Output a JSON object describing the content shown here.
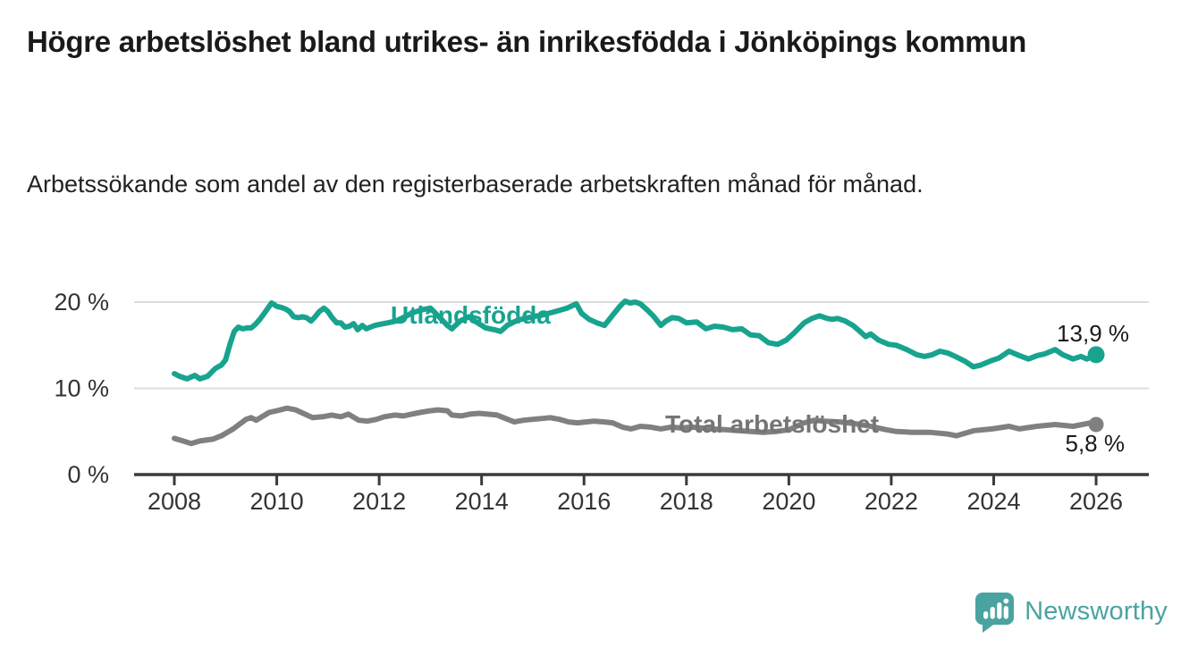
{
  "header": {
    "title": "Högre arbetslöshet bland utrikes- än inrikesfödda i Jönköpings kommun",
    "subtitle": "Arbetssökande som andel av den registerbaserade arbetskraften månad för månad."
  },
  "footer": {
    "brand": "Newsworthy"
  },
  "colors": {
    "teal": "#18a38f",
    "gray": "#808080",
    "gray_label": "#757575",
    "grid": "#dcdcdc",
    "axis": "#3a3a3a",
    "text_dark": "#1a1a1a",
    "logo_teal": "#4aa3a1"
  },
  "chart_data": {
    "type": "line",
    "title": "Högre arbetslöshet bland utrikes- än inrikesfödda i Jönköpings kommun",
    "subtitle": "Arbetssökande som andel av den registerbaserade arbetskraften månad för månad.",
    "grid": "horizontal",
    "legend": "inline-labels",
    "x_axis": {
      "ticks": [
        2008,
        2010,
        2012,
        2014,
        2016,
        2018,
        2020,
        2022,
        2024,
        2026
      ],
      "labels": [
        "2008",
        "2010",
        "2012",
        "2014",
        "2016",
        "2018",
        "2020",
        "2022",
        "2024",
        "2026"
      ],
      "range": [
        2007.2,
        2027.0
      ]
    },
    "y_axis": {
      "ticks": [
        0,
        10,
        20
      ],
      "labels": [
        "0 %",
        "10 %",
        "20 %"
      ],
      "range": [
        0,
        22
      ],
      "unit": "%"
    },
    "series": [
      {
        "name": "Utlandsfödda",
        "color": "#18a38f",
        "end_label": "13,9 %",
        "end_value": 13.9,
        "points": [
          [
            2008.0,
            11.7
          ],
          [
            2008.1,
            11.4
          ],
          [
            2008.25,
            11.1
          ],
          [
            2008.4,
            11.5
          ],
          [
            2008.5,
            11.1
          ],
          [
            2008.65,
            11.4
          ],
          [
            2008.8,
            12.3
          ],
          [
            2008.92,
            12.7
          ],
          [
            2009.0,
            13.3
          ],
          [
            2009.08,
            15.0
          ],
          [
            2009.17,
            16.6
          ],
          [
            2009.25,
            17.1
          ],
          [
            2009.33,
            16.9
          ],
          [
            2009.42,
            17.0
          ],
          [
            2009.5,
            17.0
          ],
          [
            2009.58,
            17.4
          ],
          [
            2009.67,
            18.0
          ],
          [
            2009.78,
            18.9
          ],
          [
            2009.9,
            19.9
          ],
          [
            2010.0,
            19.5
          ],
          [
            2010.08,
            19.4
          ],
          [
            2010.17,
            19.2
          ],
          [
            2010.25,
            18.9
          ],
          [
            2010.33,
            18.3
          ],
          [
            2010.42,
            18.2
          ],
          [
            2010.5,
            18.3
          ],
          [
            2010.58,
            18.2
          ],
          [
            2010.67,
            17.8
          ],
          [
            2010.75,
            18.3
          ],
          [
            2010.83,
            18.9
          ],
          [
            2010.92,
            19.3
          ],
          [
            2011.0,
            18.9
          ],
          [
            2011.08,
            18.2
          ],
          [
            2011.17,
            17.6
          ],
          [
            2011.25,
            17.6
          ],
          [
            2011.33,
            17.1
          ],
          [
            2011.42,
            17.2
          ],
          [
            2011.5,
            17.5
          ],
          [
            2011.58,
            16.8
          ],
          [
            2011.67,
            17.3
          ],
          [
            2011.75,
            16.9
          ],
          [
            2011.83,
            17.1
          ],
          [
            2011.92,
            17.3
          ],
          [
            2012.0,
            17.4
          ],
          [
            2012.17,
            17.6
          ],
          [
            2012.33,
            17.8
          ],
          [
            2012.5,
            18.3
          ],
          [
            2012.67,
            18.8
          ],
          [
            2012.83,
            19.1
          ],
          [
            2013.0,
            19.3
          ],
          [
            2013.17,
            18.3
          ],
          [
            2013.33,
            17.3
          ],
          [
            2013.42,
            16.9
          ],
          [
            2013.58,
            17.8
          ],
          [
            2013.75,
            18.3
          ],
          [
            2013.92,
            17.6
          ],
          [
            2014.08,
            17.0
          ],
          [
            2014.25,
            16.8
          ],
          [
            2014.37,
            16.6
          ],
          [
            2014.5,
            17.3
          ],
          [
            2014.67,
            17.8
          ],
          [
            2014.83,
            18.1
          ],
          [
            2015.0,
            18.3
          ],
          [
            2015.25,
            18.6
          ],
          [
            2015.5,
            19.0
          ],
          [
            2015.67,
            19.3
          ],
          [
            2015.85,
            19.8
          ],
          [
            2015.95,
            18.7
          ],
          [
            2016.1,
            18.0
          ],
          [
            2016.25,
            17.6
          ],
          [
            2016.4,
            17.3
          ],
          [
            2016.55,
            18.4
          ],
          [
            2016.7,
            19.5
          ],
          [
            2016.8,
            20.1
          ],
          [
            2016.9,
            19.9
          ],
          [
            2017.0,
            20.0
          ],
          [
            2017.1,
            19.8
          ],
          [
            2017.25,
            19.0
          ],
          [
            2017.35,
            18.4
          ],
          [
            2017.5,
            17.3
          ],
          [
            2017.6,
            17.8
          ],
          [
            2017.72,
            18.2
          ],
          [
            2017.85,
            18.1
          ],
          [
            2018.0,
            17.6
          ],
          [
            2018.2,
            17.7
          ],
          [
            2018.38,
            16.9
          ],
          [
            2018.55,
            17.2
          ],
          [
            2018.72,
            17.1
          ],
          [
            2018.9,
            16.8
          ],
          [
            2019.08,
            16.9
          ],
          [
            2019.25,
            16.2
          ],
          [
            2019.42,
            16.1
          ],
          [
            2019.6,
            15.3
          ],
          [
            2019.78,
            15.1
          ],
          [
            2019.95,
            15.6
          ],
          [
            2020.1,
            16.4
          ],
          [
            2020.3,
            17.6
          ],
          [
            2020.45,
            18.1
          ],
          [
            2020.6,
            18.4
          ],
          [
            2020.75,
            18.1
          ],
          [
            2020.85,
            18.0
          ],
          [
            2020.95,
            18.1
          ],
          [
            2021.1,
            17.8
          ],
          [
            2021.25,
            17.3
          ],
          [
            2021.35,
            16.8
          ],
          [
            2021.5,
            16.0
          ],
          [
            2021.6,
            16.3
          ],
          [
            2021.75,
            15.6
          ],
          [
            2021.95,
            15.1
          ],
          [
            2022.1,
            15.0
          ],
          [
            2022.3,
            14.5
          ],
          [
            2022.5,
            13.9
          ],
          [
            2022.65,
            13.7
          ],
          [
            2022.8,
            13.9
          ],
          [
            2022.95,
            14.3
          ],
          [
            2023.1,
            14.1
          ],
          [
            2023.25,
            13.7
          ],
          [
            2023.45,
            13.1
          ],
          [
            2023.6,
            12.5
          ],
          [
            2023.75,
            12.7
          ],
          [
            2023.95,
            13.2
          ],
          [
            2024.1,
            13.5
          ],
          [
            2024.3,
            14.3
          ],
          [
            2024.5,
            13.8
          ],
          [
            2024.68,
            13.4
          ],
          [
            2024.85,
            13.8
          ],
          [
            2025.0,
            14.0
          ],
          [
            2025.2,
            14.5
          ],
          [
            2025.35,
            13.9
          ],
          [
            2025.55,
            13.4
          ],
          [
            2025.7,
            13.7
          ],
          [
            2025.82,
            13.4
          ],
          [
            2026.0,
            13.9
          ]
        ]
      },
      {
        "name": "Total arbetslöshet",
        "color": "#808080",
        "end_label": "5,8 %",
        "end_value": 5.8,
        "points": [
          [
            2008.0,
            4.2
          ],
          [
            2008.17,
            3.9
          ],
          [
            2008.33,
            3.6
          ],
          [
            2008.5,
            3.9
          ],
          [
            2008.75,
            4.1
          ],
          [
            2008.92,
            4.5
          ],
          [
            2009.15,
            5.3
          ],
          [
            2009.4,
            6.4
          ],
          [
            2009.5,
            6.6
          ],
          [
            2009.6,
            6.3
          ],
          [
            2009.85,
            7.2
          ],
          [
            2010.0,
            7.4
          ],
          [
            2010.2,
            7.7
          ],
          [
            2010.37,
            7.5
          ],
          [
            2010.55,
            7.0
          ],
          [
            2010.7,
            6.6
          ],
          [
            2010.9,
            6.7
          ],
          [
            2011.07,
            6.9
          ],
          [
            2011.25,
            6.7
          ],
          [
            2011.4,
            7.0
          ],
          [
            2011.6,
            6.3
          ],
          [
            2011.77,
            6.2
          ],
          [
            2011.95,
            6.4
          ],
          [
            2012.1,
            6.7
          ],
          [
            2012.3,
            6.9
          ],
          [
            2012.47,
            6.8
          ],
          [
            2012.63,
            7.0
          ],
          [
            2012.8,
            7.2
          ],
          [
            2013.0,
            7.4
          ],
          [
            2013.15,
            7.5
          ],
          [
            2013.33,
            7.4
          ],
          [
            2013.42,
            6.9
          ],
          [
            2013.6,
            6.8
          ],
          [
            2013.77,
            7.0
          ],
          [
            2013.95,
            7.1
          ],
          [
            2014.12,
            7.0
          ],
          [
            2014.3,
            6.9
          ],
          [
            2014.47,
            6.5
          ],
          [
            2014.64,
            6.1
          ],
          [
            2014.82,
            6.3
          ],
          [
            2015.0,
            6.4
          ],
          [
            2015.17,
            6.5
          ],
          [
            2015.34,
            6.6
          ],
          [
            2015.52,
            6.4
          ],
          [
            2015.7,
            6.1
          ],
          [
            2015.87,
            6.0
          ],
          [
            2016.04,
            6.1
          ],
          [
            2016.2,
            6.2
          ],
          [
            2016.4,
            6.1
          ],
          [
            2016.56,
            6.0
          ],
          [
            2016.75,
            5.5
          ],
          [
            2016.92,
            5.3
          ],
          [
            2017.1,
            5.6
          ],
          [
            2017.3,
            5.5
          ],
          [
            2017.5,
            5.3
          ],
          [
            2017.7,
            5.5
          ],
          [
            2017.9,
            5.4
          ],
          [
            2018.1,
            5.5
          ],
          [
            2018.3,
            5.4
          ],
          [
            2018.5,
            5.3
          ],
          [
            2018.75,
            5.2
          ],
          [
            2019.0,
            5.1
          ],
          [
            2019.25,
            5.0
          ],
          [
            2019.5,
            4.9
          ],
          [
            2019.75,
            5.0
          ],
          [
            2020.0,
            5.2
          ],
          [
            2020.3,
            6.0
          ],
          [
            2020.5,
            6.3
          ],
          [
            2020.7,
            6.2
          ],
          [
            2021.0,
            6.1
          ],
          [
            2021.3,
            5.9
          ],
          [
            2021.6,
            5.6
          ],
          [
            2021.9,
            5.2
          ],
          [
            2022.1,
            5.0
          ],
          [
            2022.4,
            4.9
          ],
          [
            2022.75,
            4.9
          ],
          [
            2023.1,
            4.7
          ],
          [
            2023.27,
            4.5
          ],
          [
            2023.62,
            5.1
          ],
          [
            2023.97,
            5.3
          ],
          [
            2024.3,
            5.6
          ],
          [
            2024.5,
            5.3
          ],
          [
            2024.84,
            5.6
          ],
          [
            2025.2,
            5.8
          ],
          [
            2025.55,
            5.6
          ],
          [
            2025.9,
            6.0
          ],
          [
            2026.0,
            5.8
          ]
        ]
      }
    ]
  }
}
